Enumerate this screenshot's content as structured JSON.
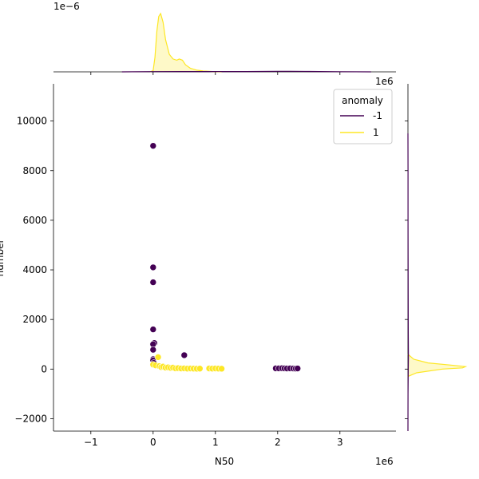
{
  "chart_data": {
    "type": "scatter",
    "xlabel": "N50",
    "ylabel": "number",
    "x_offset_label": "1e6",
    "y_marginal_offset_label": "1e6",
    "top_marginal_offset_label": "1e−6",
    "xlim": [
      -1600000,
      3900000
    ],
    "ylim": [
      -2500,
      11500
    ],
    "x_ticks": [
      -1,
      0,
      1,
      2,
      3
    ],
    "y_ticks": [
      -2000,
      0,
      2000,
      4000,
      6000,
      8000,
      10000
    ],
    "legend": {
      "title": "anomaly",
      "placement": "top-right",
      "entries": [
        {
          "label": "-1",
          "color": "#440154"
        },
        {
          "label": "1",
          "color": "#fde725"
        }
      ]
    },
    "series": [
      {
        "name": "-1",
        "color": "#440154",
        "points": [
          [
            0,
            9000
          ],
          [
            0,
            4100
          ],
          [
            0,
            3500
          ],
          [
            0,
            1600
          ],
          [
            20000,
            1050
          ],
          [
            0,
            1000
          ],
          [
            0,
            780
          ],
          [
            500000,
            560
          ],
          [
            0,
            400
          ],
          [
            0,
            350
          ],
          [
            10000,
            250
          ],
          [
            1970000,
            30
          ],
          [
            2020000,
            30
          ],
          [
            2070000,
            35
          ],
          [
            2110000,
            30
          ],
          [
            2150000,
            25
          ],
          [
            2200000,
            30
          ],
          [
            2250000,
            25
          ],
          [
            2290000,
            20
          ],
          [
            2320000,
            25
          ]
        ]
      },
      {
        "name": "1",
        "color": "#fde725",
        "points": [
          [
            0,
            180
          ],
          [
            40000,
            150
          ],
          [
            80000,
            480
          ],
          [
            100000,
            120
          ],
          [
            130000,
            80
          ],
          [
            160000,
            100
          ],
          [
            200000,
            60
          ],
          [
            240000,
            70
          ],
          [
            280000,
            50
          ],
          [
            320000,
            60
          ],
          [
            360000,
            30
          ],
          [
            400000,
            40
          ],
          [
            450000,
            25
          ],
          [
            500000,
            30
          ],
          [
            550000,
            20
          ],
          [
            600000,
            25
          ],
          [
            650000,
            20
          ],
          [
            700000,
            15
          ],
          [
            750000,
            20
          ],
          [
            900000,
            25
          ],
          [
            950000,
            20
          ],
          [
            1000000,
            25
          ],
          [
            1050000,
            20
          ],
          [
            1100000,
            15
          ]
        ]
      }
    ],
    "marginal_x": {
      "series": [
        {
          "name": "1",
          "color": "#fde725",
          "fill": true,
          "x": [
            -50000,
            0,
            30000,
            60000,
            90000,
            120000,
            160000,
            200000,
            260000,
            320000,
            380000,
            420000,
            470000,
            520000,
            600000,
            700000,
            800000,
            950000,
            1100000
          ],
          "y": [
            0,
            0.02,
            0.25,
            0.7,
            0.95,
            1.0,
            0.85,
            0.55,
            0.3,
            0.22,
            0.2,
            0.22,
            0.2,
            0.12,
            0.06,
            0.03,
            0.015,
            0.005,
            0
          ]
        },
        {
          "name": "-1",
          "color": "#440154",
          "fill": false,
          "x": [
            -500000,
            0,
            500000,
            1000000,
            1500000,
            2000000,
            2200000,
            2500000,
            3000000,
            3500000
          ],
          "y": [
            0,
            0.004,
            0.006,
            0.006,
            0.006,
            0.009,
            0.01,
            0.007,
            0.003,
            0
          ]
        }
      ]
    },
    "marginal_y": {
      "series": [
        {
          "name": "1",
          "color": "#fde725",
          "fill": true,
          "y": [
            -300,
            -150,
            0,
            50,
            100,
            150,
            250,
            400,
            600
          ],
          "x": [
            0,
            0.15,
            0.6,
            0.95,
            1.0,
            0.8,
            0.35,
            0.1,
            0
          ]
        },
        {
          "name": "-1",
          "color": "#440154",
          "fill": false,
          "y": [
            -2500,
            -1000,
            0,
            500,
            1500,
            3000,
            4500,
            6000,
            8000,
            9500
          ],
          "x": [
            0,
            0.002,
            0.006,
            0.008,
            0.006,
            0.004,
            0.003,
            0.002,
            0.002,
            0
          ]
        }
      ]
    }
  }
}
